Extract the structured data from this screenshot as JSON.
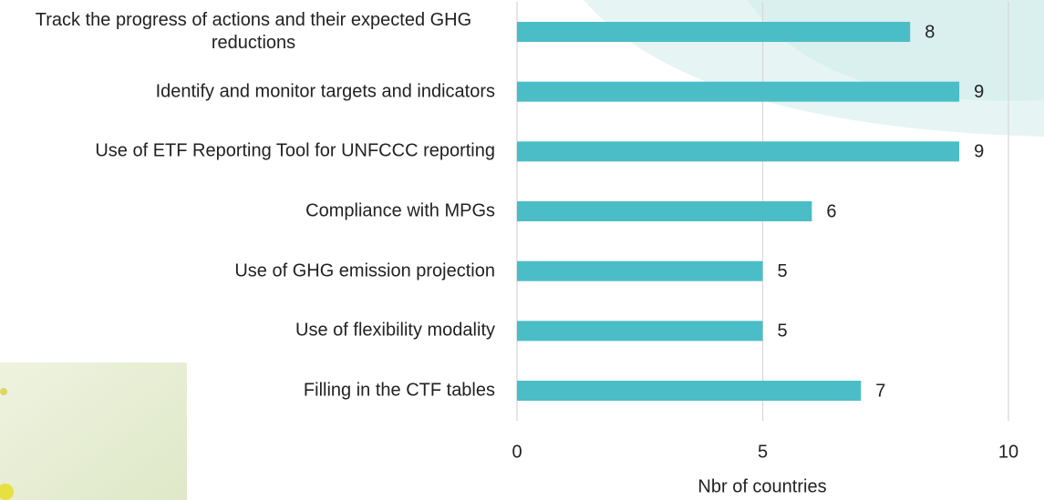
{
  "chart_data": {
    "type": "bar",
    "orientation": "horizontal",
    "categories": [
      "Track the progress of actions and their expected GHG reductions",
      "Identify and monitor targets and indicators",
      "Use of ETF Reporting Tool for UNFCCC reporting",
      "Compliance with MPGs",
      "Use of GHG emission projection",
      "Use of flexibility modality",
      "Filling in the CTF tables"
    ],
    "values": [
      8,
      9,
      9,
      6,
      5,
      5,
      7
    ],
    "color": "#4bbdc6",
    "xlabel": "Nbr of countries",
    "xlim": [
      0,
      10
    ],
    "xticks": [
      0,
      5,
      10
    ],
    "grid": true
  }
}
